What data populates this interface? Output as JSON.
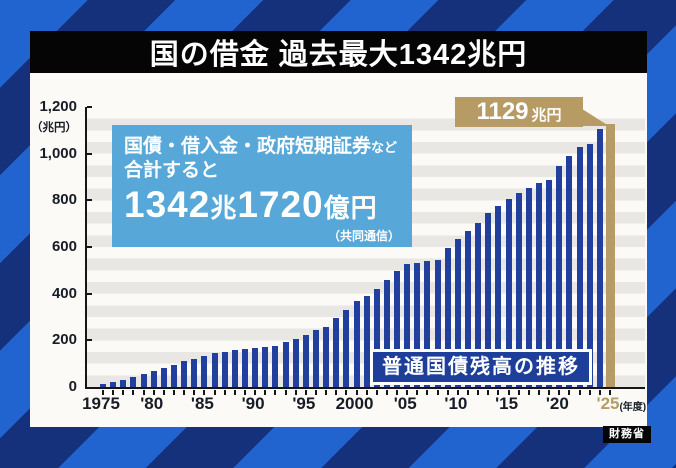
{
  "header": {
    "title": "国の借金 過去最大1342兆円"
  },
  "annotation": {
    "line1": "国債・借入金・政府短期証券",
    "line1_suffix": "など",
    "line2": "合計すると",
    "amount": {
      "n1": "1342",
      "u1": "兆",
      "n2": "1720",
      "u2": "億円"
    },
    "credit": "（共同通信）"
  },
  "peak_label": {
    "value": "1129",
    "unit": "兆円"
  },
  "series_label": "普通国債残高の推移",
  "source_badge": "財務省",
  "colors": {
    "stripe_light": "#2264cf",
    "stripe_dark": "#16317c",
    "title_bg": "#050505",
    "card_bg": "#fbfaf7",
    "band": "#e8e7e3",
    "axis": "#15161a",
    "bar": "#21409e",
    "bar_highlight": "#b69c64",
    "callout_bg": "#57a7d9",
    "peak_bg": "#b69c64",
    "series_bg": "#1d3f9a",
    "text_dark": "#171c26"
  },
  "chart_data": {
    "type": "bar",
    "title": "普通国債残高の推移",
    "unit_label": "（兆円）",
    "x_axis_suffix": "(年度)",
    "x_start_year": 1975,
    "x_end_year": 2025,
    "ylim": [
      0,
      1200
    ],
    "grid": "horizontal-bands-50",
    "highlight_last": true,
    "y_ticks": [
      {
        "v": 0,
        "label": "0"
      },
      {
        "v": 200,
        "label": "200"
      },
      {
        "v": 400,
        "label": "400"
      },
      {
        "v": 600,
        "label": "600"
      },
      {
        "v": 800,
        "label": "800"
      },
      {
        "v": 1000,
        "label": "1,000"
      },
      {
        "v": 1200,
        "label": "1,200"
      }
    ],
    "x_ticks": [
      {
        "i": 0,
        "label": "1975"
      },
      {
        "i": 5,
        "label": "'80"
      },
      {
        "i": 10,
        "label": "'85"
      },
      {
        "i": 15,
        "label": "'90"
      },
      {
        "i": 20,
        "label": "'95"
      },
      {
        "i": 25,
        "label": "2000"
      },
      {
        "i": 30,
        "label": "'05"
      },
      {
        "i": 35,
        "label": "'10"
      },
      {
        "i": 40,
        "label": "'15"
      },
      {
        "i": 45,
        "label": "'20"
      },
      {
        "i": 50,
        "label": "'25",
        "highlight": true
      }
    ],
    "values": [
      15,
      22,
      32,
      43,
      56,
      70,
      82,
      96,
      110,
      122,
      134,
      145,
      152,
      157,
      161,
      166,
      172,
      178,
      193,
      207,
      225,
      245,
      258,
      295,
      332,
      368,
      392,
      421,
      457,
      499,
      527,
      532,
      541,
      546,
      594,
      636,
      670,
      705,
      744,
      774,
      805,
      831,
      853,
      874,
      887,
      947,
      991,
      1027,
      1043,
      1105,
      1129
    ]
  }
}
